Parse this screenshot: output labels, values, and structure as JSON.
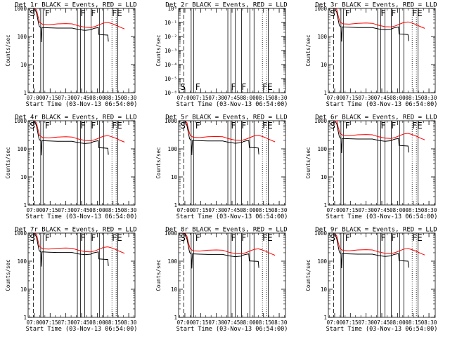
{
  "figure": {
    "colors": {
      "events": "#000000",
      "lld": "#ff0000",
      "background": "#ffffff"
    }
  },
  "chart_data": [
    {
      "type": "line",
      "title": "Det 1r  BLACK = Events, RED = LLD",
      "xlabel": "Start Time (03-Nov-13 06:54:00)",
      "ylabel": "Counts/sec",
      "yscale": "log",
      "ylim": [
        1,
        1000
      ],
      "ytick_labels": [
        "1",
        "10",
        "100",
        "1000"
      ],
      "xtick_labels": [
        "07:00",
        "07:15",
        "07:30",
        "07:45",
        "08:00",
        "08:15",
        "08:30"
      ],
      "series": [
        {
          "name": "Events",
          "color": "#000000"
        },
        {
          "name": "LLD",
          "color": "#ff0000"
        }
      ],
      "annotations": [
        "S",
        "F",
        "F",
        "F",
        "FE"
      ]
    },
    {
      "type": "line",
      "title": "Det 2r  BLACK = Events, RED = LLD",
      "xlabel": "Start Time (03-Nov-13 06:54:00)",
      "ylabel": "Counts/sec",
      "yscale": "log",
      "ylim": [
        1e-06,
        1
      ],
      "ytick_labels": [
        "10⁰",
        "10⁻¹",
        "10⁻²",
        "10⁻³",
        "10⁻⁴",
        "10⁻⁵",
        "10⁻⁶"
      ],
      "xtick_labels": [
        "07:00",
        "07:15",
        "07:30",
        "07:45",
        "08:00",
        "08:15",
        "08:30"
      ],
      "series": [],
      "annotations": [
        "S",
        "F",
        "F",
        "F",
        "FE"
      ]
    },
    {
      "type": "line",
      "title": "Det 3r  BLACK = Events, RED = LLD",
      "xlabel": "Start Time (03-Nov-13 06:54:00)",
      "ylabel": "Counts/sec",
      "yscale": "log",
      "ylim": [
        1,
        1000
      ],
      "ytick_labels": [
        "1",
        "10",
        "100",
        "1000"
      ],
      "xtick_labels": [
        "07:00",
        "07:15",
        "07:30",
        "07:45",
        "08:00",
        "08:15",
        "08:30"
      ],
      "series": [
        {
          "name": "Events",
          "color": "#000000"
        },
        {
          "name": "LLD",
          "color": "#ff0000"
        }
      ],
      "annotations": [
        "S",
        "F",
        "F",
        "F",
        "FE"
      ]
    },
    {
      "type": "line",
      "title": "Det 4r  BLACK = Events, RED = LLD",
      "xlabel": "Start Time (03-Nov-13 06:54:00)",
      "ylabel": "Counts/sec",
      "yscale": "log",
      "ylim": [
        1,
        1000
      ],
      "ytick_labels": [
        "1",
        "10",
        "100",
        "1000"
      ],
      "xtick_labels": [
        "07:00",
        "07:15",
        "07:30",
        "07:45",
        "08:00",
        "08:15",
        "08:30"
      ],
      "series": [
        {
          "name": "Events",
          "color": "#000000"
        },
        {
          "name": "LLD",
          "color": "#ff0000"
        }
      ],
      "annotations": [
        "S",
        "F",
        "F",
        "F",
        "FE"
      ]
    },
    {
      "type": "line",
      "title": "Det 5r  BLACK = Events, RED = LLD",
      "xlabel": "Start Time (03-Nov-13 06:54:00)",
      "ylabel": "Counts/sec",
      "yscale": "log",
      "ylim": [
        1,
        1000
      ],
      "ytick_labels": [
        "1",
        "10",
        "100",
        "1000"
      ],
      "xtick_labels": [
        "07:00",
        "07:15",
        "07:30",
        "07:45",
        "08:00",
        "08:15",
        "08:30"
      ],
      "series": [
        {
          "name": "Events",
          "color": "#000000"
        },
        {
          "name": "LLD",
          "color": "#ff0000"
        }
      ],
      "annotations": [
        "S",
        "F",
        "F",
        "F",
        "FE"
      ]
    },
    {
      "type": "line",
      "title": "Det 6r  BLACK = Events, RED = LLD",
      "xlabel": "Start Time (03-Nov-13 06:54:00)",
      "ylabel": "Counts/sec",
      "yscale": "log",
      "ylim": [
        1,
        1000
      ],
      "ytick_labels": [
        "1",
        "10",
        "100",
        "1000"
      ],
      "xtick_labels": [
        "07:00",
        "07:15",
        "07:30",
        "07:45",
        "08:00",
        "08:15",
        "08:30"
      ],
      "series": [
        {
          "name": "Events",
          "color": "#000000"
        },
        {
          "name": "LLD",
          "color": "#ff0000"
        }
      ],
      "annotations": [
        "S",
        "F",
        "F",
        "F",
        "FE"
      ]
    },
    {
      "type": "line",
      "title": "Det 7r  BLACK = Events, RED = LLD",
      "xlabel": "Start Time (03-Nov-13 06:54:00)",
      "ylabel": "Counts/sec",
      "yscale": "log",
      "ylim": [
        1,
        1000
      ],
      "ytick_labels": [
        "1",
        "10",
        "100",
        "1000"
      ],
      "xtick_labels": [
        "07:00",
        "07:15",
        "07:30",
        "07:45",
        "08:00",
        "08:15",
        "08:30"
      ],
      "series": [
        {
          "name": "Events",
          "color": "#000000"
        },
        {
          "name": "LLD",
          "color": "#ff0000"
        }
      ],
      "annotations": [
        "S",
        "F",
        "F",
        "F",
        "FE"
      ]
    },
    {
      "type": "line",
      "title": "Det 8r  BLACK = Events, RED = LLD",
      "xlabel": "Start Time (03-Nov-13 06:54:00)",
      "ylabel": "Counts/sec",
      "yscale": "log",
      "ylim": [
        1,
        1000
      ],
      "ytick_labels": [
        "1",
        "10",
        "100",
        "1000"
      ],
      "xtick_labels": [
        "07:00",
        "07:15",
        "07:30",
        "07:45",
        "08:00",
        "08:15",
        "08:30"
      ],
      "series": [
        {
          "name": "Events",
          "color": "#000000"
        },
        {
          "name": "LLD",
          "color": "#ff0000"
        }
      ],
      "annotations": [
        "S",
        "F",
        "F",
        "F",
        "FE"
      ]
    },
    {
      "type": "line",
      "title": "Det 9r  BLACK = Events, RED = LLD",
      "xlabel": "Start Time (03-Nov-13 06:54:00)",
      "ylabel": "Counts/sec",
      "yscale": "log",
      "ylim": [
        1,
        1000
      ],
      "ytick_labels": [
        "1",
        "10",
        "100",
        "1000"
      ],
      "xtick_labels": [
        "07:00",
        "07:15",
        "07:30",
        "07:45",
        "08:00",
        "08:15",
        "08:30"
      ],
      "series": [
        {
          "name": "Events",
          "color": "#000000"
        },
        {
          "name": "LLD",
          "color": "#ff0000"
        }
      ],
      "annotations": [
        "S",
        "F",
        "F",
        "F",
        "FE"
      ]
    }
  ]
}
